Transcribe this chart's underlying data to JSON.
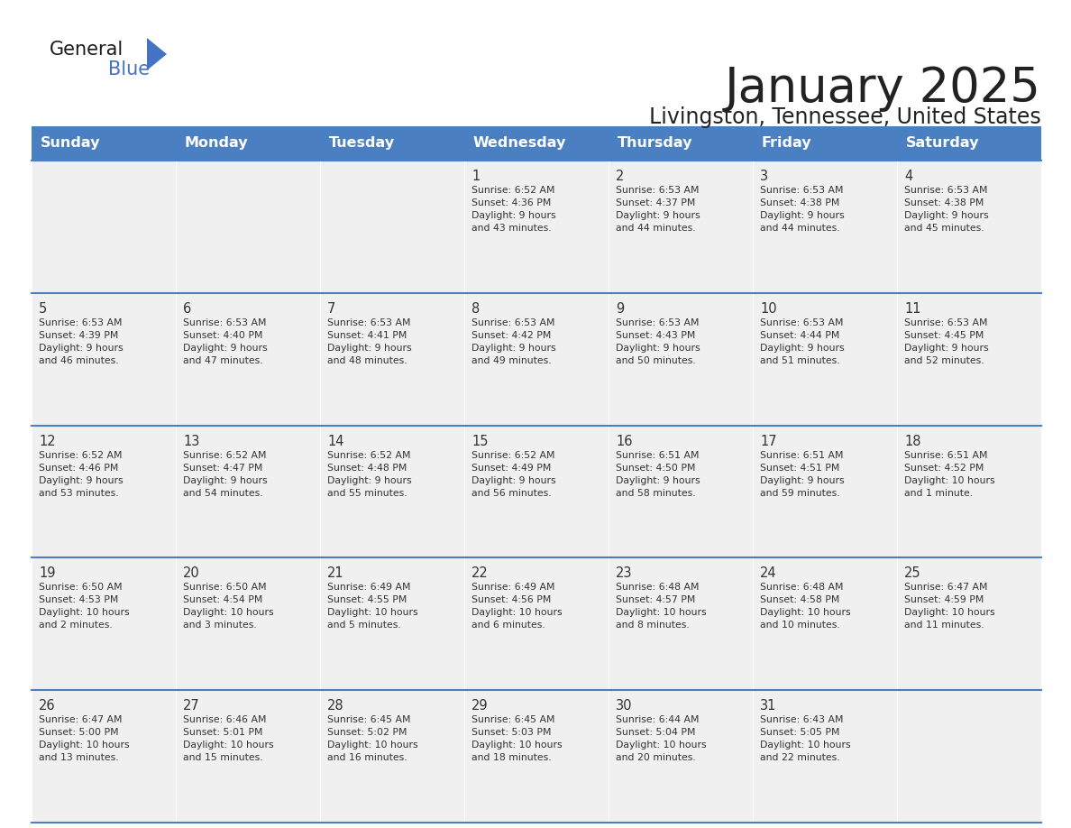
{
  "title": "January 2025",
  "subtitle": "Livingston, Tennessee, United States",
  "header_color": "#4a7fc1",
  "header_text_color": "#FFFFFF",
  "day_names": [
    "Sunday",
    "Monday",
    "Tuesday",
    "Wednesday",
    "Thursday",
    "Friday",
    "Saturday"
  ],
  "background_color": "#FFFFFF",
  "cell_bg_color": "#F0F0F0",
  "border_color": "#4a7fc1",
  "text_color": "#333333",
  "title_color": "#222222",
  "days": [
    {
      "day": 1,
      "col": 3,
      "row": 0,
      "sunrise": "6:52 AM",
      "sunset": "4:36 PM",
      "daylight_h": "9 hours",
      "daylight_m": "43 minutes."
    },
    {
      "day": 2,
      "col": 4,
      "row": 0,
      "sunrise": "6:53 AM",
      "sunset": "4:37 PM",
      "daylight_h": "9 hours",
      "daylight_m": "44 minutes."
    },
    {
      "day": 3,
      "col": 5,
      "row": 0,
      "sunrise": "6:53 AM",
      "sunset": "4:38 PM",
      "daylight_h": "9 hours",
      "daylight_m": "44 minutes."
    },
    {
      "day": 4,
      "col": 6,
      "row": 0,
      "sunrise": "6:53 AM",
      "sunset": "4:38 PM",
      "daylight_h": "9 hours",
      "daylight_m": "45 minutes."
    },
    {
      "day": 5,
      "col": 0,
      "row": 1,
      "sunrise": "6:53 AM",
      "sunset": "4:39 PM",
      "daylight_h": "9 hours",
      "daylight_m": "46 minutes."
    },
    {
      "day": 6,
      "col": 1,
      "row": 1,
      "sunrise": "6:53 AM",
      "sunset": "4:40 PM",
      "daylight_h": "9 hours",
      "daylight_m": "47 minutes."
    },
    {
      "day": 7,
      "col": 2,
      "row": 1,
      "sunrise": "6:53 AM",
      "sunset": "4:41 PM",
      "daylight_h": "9 hours",
      "daylight_m": "48 minutes."
    },
    {
      "day": 8,
      "col": 3,
      "row": 1,
      "sunrise": "6:53 AM",
      "sunset": "4:42 PM",
      "daylight_h": "9 hours",
      "daylight_m": "49 minutes."
    },
    {
      "day": 9,
      "col": 4,
      "row": 1,
      "sunrise": "6:53 AM",
      "sunset": "4:43 PM",
      "daylight_h": "9 hours",
      "daylight_m": "50 minutes."
    },
    {
      "day": 10,
      "col": 5,
      "row": 1,
      "sunrise": "6:53 AM",
      "sunset": "4:44 PM",
      "daylight_h": "9 hours",
      "daylight_m": "51 minutes."
    },
    {
      "day": 11,
      "col": 6,
      "row": 1,
      "sunrise": "6:53 AM",
      "sunset": "4:45 PM",
      "daylight_h": "9 hours",
      "daylight_m": "52 minutes."
    },
    {
      "day": 12,
      "col": 0,
      "row": 2,
      "sunrise": "6:52 AM",
      "sunset": "4:46 PM",
      "daylight_h": "9 hours",
      "daylight_m": "53 minutes."
    },
    {
      "day": 13,
      "col": 1,
      "row": 2,
      "sunrise": "6:52 AM",
      "sunset": "4:47 PM",
      "daylight_h": "9 hours",
      "daylight_m": "54 minutes."
    },
    {
      "day": 14,
      "col": 2,
      "row": 2,
      "sunrise": "6:52 AM",
      "sunset": "4:48 PM",
      "daylight_h": "9 hours",
      "daylight_m": "55 minutes."
    },
    {
      "day": 15,
      "col": 3,
      "row": 2,
      "sunrise": "6:52 AM",
      "sunset": "4:49 PM",
      "daylight_h": "9 hours",
      "daylight_m": "56 minutes."
    },
    {
      "day": 16,
      "col": 4,
      "row": 2,
      "sunrise": "6:51 AM",
      "sunset": "4:50 PM",
      "daylight_h": "9 hours",
      "daylight_m": "58 minutes."
    },
    {
      "day": 17,
      "col": 5,
      "row": 2,
      "sunrise": "6:51 AM",
      "sunset": "4:51 PM",
      "daylight_h": "9 hours",
      "daylight_m": "59 minutes."
    },
    {
      "day": 18,
      "col": 6,
      "row": 2,
      "sunrise": "6:51 AM",
      "sunset": "4:52 PM",
      "daylight_h": "10 hours",
      "daylight_m": "1 minute."
    },
    {
      "day": 19,
      "col": 0,
      "row": 3,
      "sunrise": "6:50 AM",
      "sunset": "4:53 PM",
      "daylight_h": "10 hours",
      "daylight_m": "2 minutes."
    },
    {
      "day": 20,
      "col": 1,
      "row": 3,
      "sunrise": "6:50 AM",
      "sunset": "4:54 PM",
      "daylight_h": "10 hours",
      "daylight_m": "3 minutes."
    },
    {
      "day": 21,
      "col": 2,
      "row": 3,
      "sunrise": "6:49 AM",
      "sunset": "4:55 PM",
      "daylight_h": "10 hours",
      "daylight_m": "5 minutes."
    },
    {
      "day": 22,
      "col": 3,
      "row": 3,
      "sunrise": "6:49 AM",
      "sunset": "4:56 PM",
      "daylight_h": "10 hours",
      "daylight_m": "6 minutes."
    },
    {
      "day": 23,
      "col": 4,
      "row": 3,
      "sunrise": "6:48 AM",
      "sunset": "4:57 PM",
      "daylight_h": "10 hours",
      "daylight_m": "8 minutes."
    },
    {
      "day": 24,
      "col": 5,
      "row": 3,
      "sunrise": "6:48 AM",
      "sunset": "4:58 PM",
      "daylight_h": "10 hours",
      "daylight_m": "10 minutes."
    },
    {
      "day": 25,
      "col": 6,
      "row": 3,
      "sunrise": "6:47 AM",
      "sunset": "4:59 PM",
      "daylight_h": "10 hours",
      "daylight_m": "11 minutes."
    },
    {
      "day": 26,
      "col": 0,
      "row": 4,
      "sunrise": "6:47 AM",
      "sunset": "5:00 PM",
      "daylight_h": "10 hours",
      "daylight_m": "13 minutes."
    },
    {
      "day": 27,
      "col": 1,
      "row": 4,
      "sunrise": "6:46 AM",
      "sunset": "5:01 PM",
      "daylight_h": "10 hours",
      "daylight_m": "15 minutes."
    },
    {
      "day": 28,
      "col": 2,
      "row": 4,
      "sunrise": "6:45 AM",
      "sunset": "5:02 PM",
      "daylight_h": "10 hours",
      "daylight_m": "16 minutes."
    },
    {
      "day": 29,
      "col": 3,
      "row": 4,
      "sunrise": "6:45 AM",
      "sunset": "5:03 PM",
      "daylight_h": "10 hours",
      "daylight_m": "18 minutes."
    },
    {
      "day": 30,
      "col": 4,
      "row": 4,
      "sunrise": "6:44 AM",
      "sunset": "5:04 PM",
      "daylight_h": "10 hours",
      "daylight_m": "20 minutes."
    },
    {
      "day": 31,
      "col": 5,
      "row": 4,
      "sunrise": "6:43 AM",
      "sunset": "5:05 PM",
      "daylight_h": "10 hours",
      "daylight_m": "22 minutes."
    }
  ]
}
